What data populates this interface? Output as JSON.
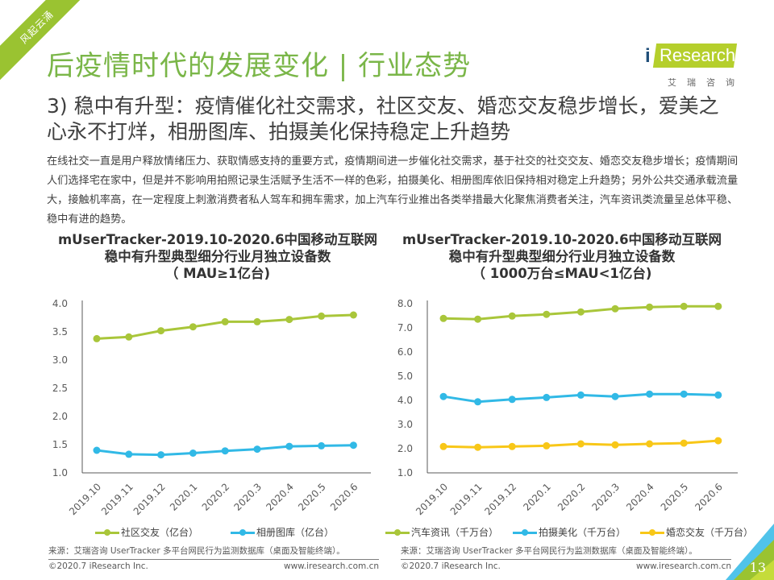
{
  "ribbon": {
    "text": "风起云涌"
  },
  "header": {
    "title": "后疫情时代的发展变化 | 行业态势"
  },
  "logo": {
    "brand_i": "i",
    "brand": "Research",
    "cn": "艾瑞咨询"
  },
  "subtitle": "3)  稳中有升型：疫情催化社交需求，社区交友、婚恋交友稳步增长，爱美之心永不打烊，相册图库、拍摄美化保持稳定上升趋势",
  "body": "在线社交一直是用户释放情绪压力、获取情感支持的重要方式，疫情期间进一步催化社交需求，基于社交的社交交友、婚恋交友稳步增长；疫情期间人们选择宅在家中，但是并不影响用拍照记录生活赋予生活不一样的色彩，拍摄美化、相册图库依旧保持相对稳定上升趋势；另外公共交通承载流量大，接触机率高，在一定程度上刺激消费者私人驾车和拥车需求，加上汽车行业推出各类举措最大化聚焦消费者关注，汽车资讯类流量呈总体平稳、稳中有进的趋势。",
  "colors": {
    "green": "#a9c63a",
    "blue": "#31b9e6",
    "yellow": "#f8c718",
    "title_green": "#7ab648"
  },
  "chart_data": [
    {
      "type": "line",
      "title": "mUserTracker-2019.10-2020.6中国移动互联网稳中有升型典型细分行业月独立设备数（MAU≥1亿台)",
      "title_lines": [
        "mUserTracker-2019.10-2020.6中国移动互联网",
        "稳中有升型典型细分行业月独立设备数",
        "（ MAU≥1亿台)"
      ],
      "categories": [
        "2019.10",
        "2019.11",
        "2019.12",
        "2020.1",
        "2020.2",
        "2020.3",
        "2020.4",
        "2020.5",
        "2020.6"
      ],
      "ylim": [
        1.0,
        4.0
      ],
      "yticks": [
        "1.0",
        "1.5",
        "2.0",
        "2.5",
        "3.0",
        "3.5",
        "4.0"
      ],
      "ytick_values": [
        1.0,
        1.5,
        2.0,
        2.5,
        3.0,
        3.5,
        4.0
      ],
      "xlabel": "",
      "ylabel": "",
      "grid": false,
      "legend_position": "bottom",
      "series": [
        {
          "name": "社区交友（亿台）",
          "color": "#a9c63a",
          "values": [
            3.38,
            3.41,
            3.52,
            3.59,
            3.68,
            3.68,
            3.72,
            3.78,
            3.8
          ]
        },
        {
          "name": "相册图库（亿台）",
          "color": "#31b9e6",
          "values": [
            1.4,
            1.33,
            1.32,
            1.35,
            1.39,
            1.42,
            1.47,
            1.48,
            1.49
          ]
        }
      ]
    },
    {
      "type": "line",
      "title": "mUserTracker-2019.10-2020.6中国移动互联网稳中有升型典型细分行业月独立设备数（1000万台≤MAU<1亿台)",
      "title_lines": [
        "mUserTracker-2019.10-2020.6中国移动互联网",
        "稳中有升型典型细分行业月独立设备数",
        "（ 1000万台≤MAU<1亿台)"
      ],
      "categories": [
        "2019.10",
        "2019.11",
        "2019.12",
        "2020.1",
        "2020.2",
        "2020.3",
        "2020.4",
        "2020.5",
        "2020.6"
      ],
      "ylim": [
        1.0,
        8.0
      ],
      "yticks": [
        "1.0",
        "2.0",
        "3.0",
        "4.0",
        "5.0",
        "6.0",
        "7.0",
        "8.0"
      ],
      "ytick_values": [
        1.0,
        2.0,
        3.0,
        4.0,
        5.0,
        6.0,
        7.0,
        8.0
      ],
      "xlabel": "",
      "ylabel": "",
      "grid": false,
      "legend_position": "bottom",
      "series": [
        {
          "name": "汽车资讯（千万台）",
          "color": "#a9c63a",
          "values": [
            7.39,
            7.36,
            7.49,
            7.56,
            7.66,
            7.79,
            7.86,
            7.89,
            7.89
          ]
        },
        {
          "name": "拍摄美化（千万台）",
          "color": "#31b9e6",
          "values": [
            4.16,
            3.94,
            4.04,
            4.12,
            4.22,
            4.16,
            4.26,
            4.26,
            4.22
          ]
        },
        {
          "name": "婚恋交友（千万台）",
          "color": "#f8c718",
          "values": [
            2.09,
            2.06,
            2.09,
            2.12,
            2.2,
            2.16,
            2.2,
            2.23,
            2.33
          ]
        }
      ]
    }
  ],
  "source": "来源：艾瑞咨询 UserTracker 多平台网民行为监测数据库（桌面及智能终端）。",
  "footer": {
    "copyright": "©2020.7 iResearch Inc.",
    "website": "www.iresearch.com.cn"
  },
  "page_number": "13"
}
